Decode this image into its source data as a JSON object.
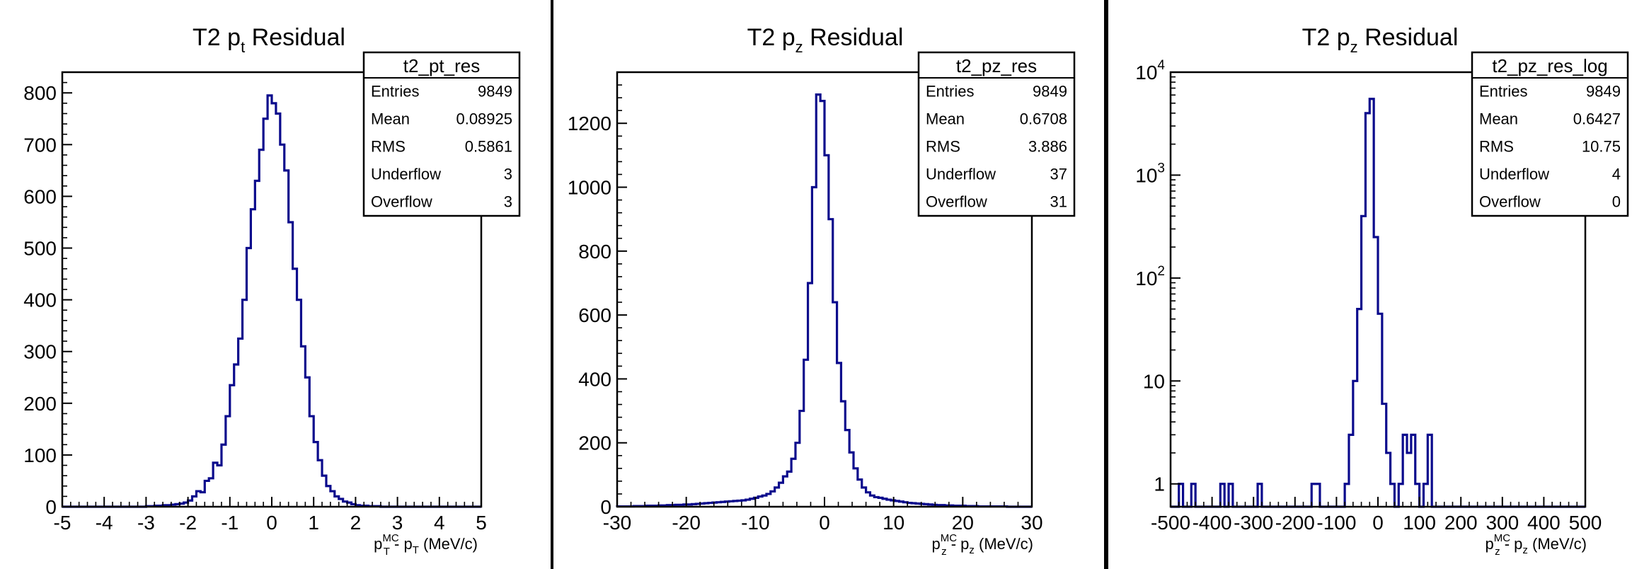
{
  "colors": {
    "background": "#ffffff",
    "line": "#0a0a8c",
    "frame": "#000000"
  },
  "chart_data": [
    {
      "type": "histogram",
      "title_main": "T2 p",
      "title_sub": "t",
      "title_rest": " Residual",
      "xlabel": {
        "p": "p",
        "sup": "MC",
        "sub1": "T",
        "dash": " - p",
        "sub2": "T",
        "units": " (MeV/c)"
      },
      "xlim": [
        -5,
        5
      ],
      "ylim": [
        0,
        840
      ],
      "yscale": "linear",
      "xticks": [
        -5,
        -4,
        -3,
        -2,
        -1,
        0,
        1,
        2,
        3,
        4,
        5
      ],
      "xtick_labels": [
        "-5",
        "-4",
        "-3",
        "-2",
        "-1",
        "0",
        "1",
        "2",
        "3",
        "4",
        "5"
      ],
      "yticks": [
        0,
        100,
        200,
        300,
        400,
        500,
        600,
        700,
        800
      ],
      "ytick_labels": [
        "0",
        "100",
        "200",
        "300",
        "400",
        "500",
        "600",
        "700",
        "800"
      ],
      "bins": {
        "start": -5,
        "width": 0.1,
        "values": [
          0,
          0,
          0,
          0,
          0,
          0,
          0,
          0,
          0,
          0,
          0,
          0,
          0,
          0,
          0,
          0,
          0,
          0,
          0,
          0,
          1,
          1,
          2,
          2,
          3,
          3,
          4,
          5,
          6,
          8,
          12,
          20,
          30,
          28,
          50,
          55,
          85,
          80,
          120,
          175,
          235,
          275,
          325,
          400,
          500,
          575,
          630,
          690,
          750,
          795,
          780,
          760,
          700,
          650,
          550,
          460,
          400,
          310,
          250,
          175,
          125,
          90,
          60,
          40,
          30,
          20,
          15,
          10,
          8,
          5,
          3,
          2,
          2,
          1,
          1,
          1,
          0,
          0,
          0,
          0,
          0,
          0,
          0,
          0,
          0,
          0,
          0,
          0,
          0,
          0,
          0,
          0,
          0,
          0,
          0,
          0,
          0,
          0,
          0,
          0
        ]
      },
      "stats": {
        "name": "t2_pt_res",
        "rows": [
          {
            "label": "Entries",
            "value": "9849"
          },
          {
            "label": "Mean",
            "value": "0.08925"
          },
          {
            "label": "RMS",
            "value": "0.5861"
          },
          {
            "label": "Underflow",
            "value": "3"
          },
          {
            "label": "Overflow",
            "value": "3"
          }
        ]
      }
    },
    {
      "type": "histogram",
      "title_main": "T2 p",
      "title_sub": "z",
      "title_rest": " Residual",
      "xlabel": {
        "p": "p",
        "sup": "MC",
        "sub1": "z",
        "dash": " - p",
        "sub2": "z",
        "units": " (MeV/c)"
      },
      "xlim": [
        -30,
        30
      ],
      "ylim": [
        0,
        1360
      ],
      "yscale": "linear",
      "xticks": [
        -30,
        -20,
        -10,
        0,
        10,
        20,
        30
      ],
      "xtick_labels": [
        "-30",
        "-20",
        "-10",
        "0",
        "10",
        "20",
        "30"
      ],
      "yticks": [
        0,
        200,
        400,
        600,
        800,
        1000,
        1200
      ],
      "ytick_labels": [
        "0",
        "200",
        "400",
        "600",
        "800",
        "1000",
        "1200"
      ],
      "bins": {
        "start": -30,
        "width": 0.6,
        "values": [
          1,
          1,
          1,
          1,
          2,
          2,
          2,
          3,
          3,
          3,
          4,
          4,
          5,
          5,
          6,
          6,
          7,
          7,
          8,
          9,
          10,
          11,
          12,
          13,
          14,
          15,
          16,
          17,
          18,
          19,
          20,
          22,
          25,
          28,
          32,
          35,
          40,
          48,
          60,
          75,
          95,
          110,
          150,
          200,
          300,
          460,
          700,
          1000,
          1290,
          1270,
          1100,
          900,
          640,
          450,
          330,
          240,
          170,
          120,
          85,
          60,
          45,
          35,
          30,
          28,
          25,
          22,
          20,
          18,
          16,
          14,
          12,
          11,
          10,
          9,
          8,
          7,
          6,
          5,
          5,
          4,
          4,
          3,
          3,
          3,
          2,
          2,
          2,
          1,
          1,
          1,
          1,
          1,
          1,
          1,
          0,
          0,
          0,
          0,
          0,
          0
        ]
      },
      "stats": {
        "name": "t2_pz_res",
        "rows": [
          {
            "label": "Entries",
            "value": "9849"
          },
          {
            "label": "Mean",
            "value": "0.6708"
          },
          {
            "label": "RMS",
            "value": "3.886"
          },
          {
            "label": "Underflow",
            "value": "37"
          },
          {
            "label": "Overflow",
            "value": "31"
          }
        ]
      }
    },
    {
      "type": "histogram",
      "title_main": "T2 p",
      "title_sub": "z",
      "title_rest": " Residual",
      "xlabel": {
        "p": "p",
        "sup": "MC",
        "sub1": "z",
        "dash": " - p",
        "sub2": "z",
        "units": " (MeV/c)"
      },
      "xlim": [
        -500,
        500
      ],
      "ylim": [
        0.6,
        10000
      ],
      "yscale": "log",
      "xticks": [
        -500,
        -400,
        -300,
        -200,
        -100,
        0,
        100,
        200,
        300,
        400,
        500
      ],
      "xtick_labels": [
        "-500",
        "-400",
        "-300",
        "-200",
        "-100",
        "0",
        "100",
        "200",
        "300",
        "400",
        "500"
      ],
      "yticks": [
        1,
        10,
        100,
        1000,
        10000
      ],
      "ytick_labels": [
        {
          "base": "1",
          "exp": ""
        },
        {
          "base": "10",
          "exp": ""
        },
        {
          "base": "10",
          "exp": "2"
        },
        {
          "base": "10",
          "exp": "3"
        },
        {
          "base": "10",
          "exp": "4"
        }
      ],
      "bins": {
        "start": -500,
        "width": 10,
        "values": [
          0,
          0,
          1,
          0,
          0,
          1,
          0,
          0,
          0,
          0,
          0,
          0,
          1,
          0,
          1,
          0,
          0,
          0,
          0,
          0,
          0,
          1,
          0,
          0,
          0,
          0,
          0,
          0,
          0,
          0,
          0,
          0,
          0,
          0,
          1,
          1,
          0,
          0,
          0,
          0,
          0,
          0,
          1,
          3,
          10,
          50,
          400,
          4000,
          5500,
          250,
          45,
          6,
          2,
          1,
          0,
          1,
          3,
          2,
          3,
          1,
          0,
          1,
          3,
          0,
          0,
          0,
          0,
          0,
          0,
          0,
          0,
          0,
          0,
          0,
          0,
          0,
          0,
          0,
          0,
          0,
          0,
          0,
          0,
          0,
          0,
          0,
          0,
          0,
          0,
          0,
          0,
          0,
          0,
          0,
          0,
          0,
          0,
          0,
          0,
          0
        ]
      },
      "stats": {
        "name": "t2_pz_res_log",
        "rows": [
          {
            "label": "Entries",
            "value": "9849"
          },
          {
            "label": "Mean",
            "value": "0.6427"
          },
          {
            "label": "RMS",
            "value": "10.75"
          },
          {
            "label": "Underflow",
            "value": "4"
          },
          {
            "label": "Overflow",
            "value": "0"
          }
        ]
      }
    }
  ]
}
